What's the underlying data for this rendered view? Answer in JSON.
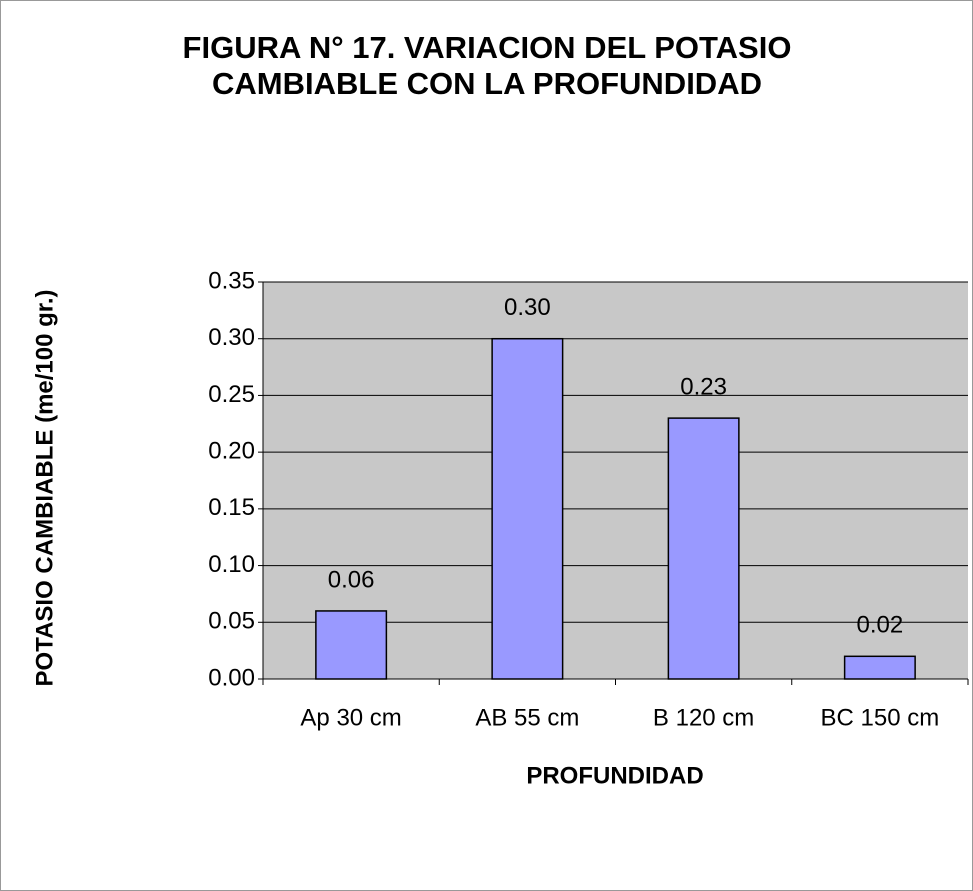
{
  "chart_data": {
    "type": "bar",
    "title": [
      "FIGURA N° 17. VARIACION DEL POTASIO",
      "CAMBIABLE CON LA PROFUNDIDAD"
    ],
    "x_label": "PROFUNDIDAD",
    "y_label": "POTASIO CAMBIABLE (me/100 gr.)",
    "categories": [
      "Ap 30 cm",
      "AB 55 cm",
      "B 120 cm",
      "BC 150 cm"
    ],
    "values": [
      0.06,
      0.3,
      0.23,
      0.02
    ],
    "value_labels": [
      "0.06",
      "0.30",
      "0.23",
      "0.02"
    ],
    "color": "#9999ff",
    "ylim": [
      0,
      0.35
    ],
    "yticks": [
      {
        "value": 0,
        "label": "0.00"
      },
      {
        "value": 0.05,
        "label": "0.05"
      },
      {
        "value": 0.1,
        "label": "0.10"
      },
      {
        "value": 0.15,
        "label": "0.15"
      },
      {
        "value": 0.2,
        "label": "0.20"
      },
      {
        "value": 0.25,
        "label": "0.25"
      },
      {
        "value": 0.3,
        "label": "0.30"
      },
      {
        "value": 0.35,
        "label": "0.35"
      }
    ],
    "grid": true
  }
}
